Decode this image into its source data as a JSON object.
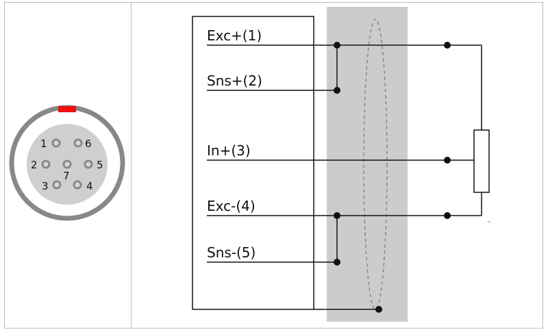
{
  "connector": {
    "pins": [
      {
        "number": "1",
        "name": "pin-1"
      },
      {
        "number": "6",
        "name": "pin-6"
      },
      {
        "number": "2",
        "name": "pin-2"
      },
      {
        "number": "7",
        "name": "pin-7"
      },
      {
        "number": "5",
        "name": "pin-5"
      },
      {
        "number": "3",
        "name": "pin-3"
      },
      {
        "number": "4",
        "name": "pin-4"
      }
    ],
    "key_color": "#ee1111",
    "ring_color": "#888888",
    "face_color": "#cfcfcf"
  },
  "wiring": {
    "signals": [
      {
        "label": "Exc+(1)"
      },
      {
        "label": "Sns+(2)"
      },
      {
        "label": "In+(3)"
      },
      {
        "label": "Exc-(4)"
      },
      {
        "label": "Sns-(5)"
      }
    ],
    "shield_color": "#cccccc"
  }
}
